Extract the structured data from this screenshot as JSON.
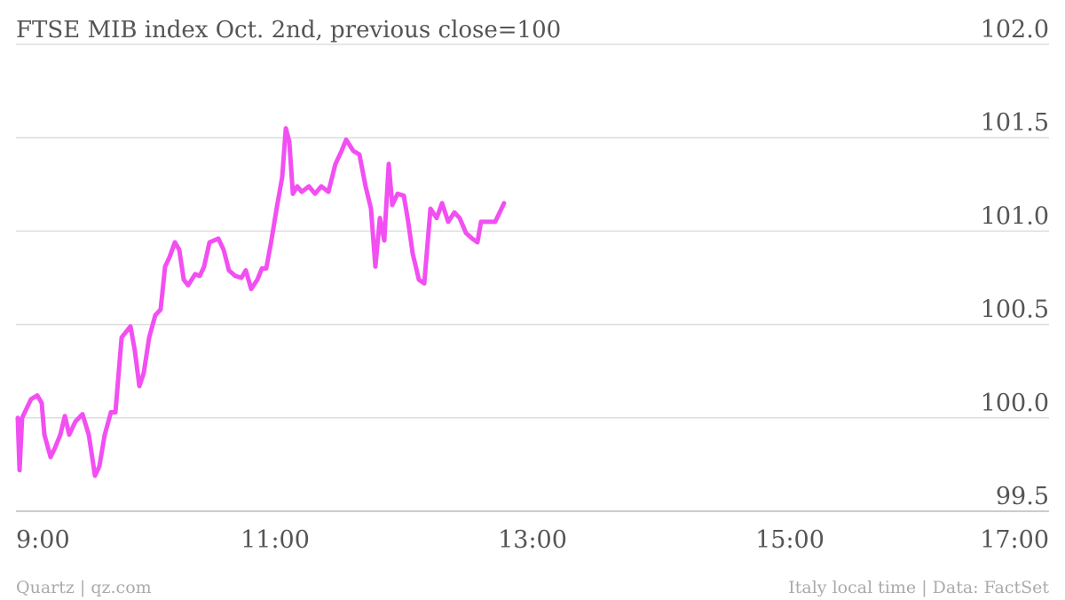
{
  "chart_data": {
    "type": "line",
    "title": "FTSE MIB index Oct. 2nd, previous close=100",
    "credit": "Quartz | qz.com",
    "source": "Italy local time | Data: FactSet",
    "xlim": [
      9,
      17
    ],
    "xticks": [
      {
        "value": 9,
        "label": "9:00"
      },
      {
        "value": 11,
        "label": "11:00"
      },
      {
        "value": 13,
        "label": "13:00"
      },
      {
        "value": 15,
        "label": "15:00"
      },
      {
        "value": 17,
        "label": "17:00"
      }
    ],
    "ylim": [
      99.5,
      102
    ],
    "yticks": [
      99.5,
      {
        "value": 100,
        "label": "100.0"
      },
      100.5,
      {
        "value": 101,
        "label": "101.0"
      },
      101.5,
      {
        "value": 102,
        "label": "102.0"
      }
    ],
    "grid": true,
    "x": [
      9.0,
      9.014,
      9.034,
      9.103,
      9.152,
      9.186,
      9.207,
      9.255,
      9.29,
      9.331,
      9.366,
      9.4,
      9.448,
      9.503,
      9.552,
      9.6,
      9.634,
      9.676,
      9.724,
      9.759,
      9.807,
      9.841,
      9.876,
      9.91,
      9.945,
      9.979,
      10.021,
      10.069,
      10.11,
      10.145,
      10.179,
      10.221,
      10.255,
      10.29,
      10.324,
      10.379,
      10.414,
      10.448,
      10.49,
      10.559,
      10.6,
      10.641,
      10.69,
      10.738,
      10.772,
      10.814,
      10.862,
      10.897,
      10.931,
      10.966,
      11.014,
      11.055,
      11.083,
      11.11,
      11.138,
      11.172,
      11.207,
      11.262,
      11.31,
      11.359,
      11.414,
      11.469,
      11.517,
      11.552,
      11.607,
      11.655,
      11.703,
      11.745,
      11.779,
      11.814,
      11.848,
      11.883,
      11.91,
      11.952,
      12.0,
      12.034,
      12.069,
      12.117,
      12.159,
      12.207,
      12.255,
      12.297,
      12.345,
      12.393,
      12.434,
      12.483,
      12.531,
      12.572,
      12.6,
      12.655,
      12.71,
      12.745,
      12.779
    ],
    "series": [
      {
        "name": "FTSE MIB",
        "color": "#f24ff2",
        "values": [
          100.0,
          99.72,
          100.0,
          100.1,
          100.12,
          100.08,
          99.91,
          99.79,
          99.84,
          99.91,
          100.01,
          99.91,
          99.98,
          100.02,
          99.91,
          99.69,
          99.74,
          99.91,
          100.03,
          100.03,
          100.43,
          100.46,
          100.49,
          100.36,
          100.17,
          100.24,
          100.43,
          100.55,
          100.58,
          100.81,
          100.86,
          100.94,
          100.9,
          100.74,
          100.71,
          100.77,
          100.76,
          100.81,
          100.94,
          100.96,
          100.9,
          100.79,
          100.76,
          100.75,
          100.79,
          100.69,
          100.74,
          100.8,
          100.8,
          100.93,
          101.13,
          101.29,
          101.55,
          101.48,
          101.2,
          101.24,
          101.21,
          101.24,
          101.2,
          101.24,
          101.21,
          101.36,
          101.43,
          101.49,
          101.43,
          101.41,
          101.24,
          101.12,
          100.81,
          101.07,
          100.95,
          101.36,
          101.14,
          101.2,
          101.19,
          101.05,
          100.88,
          100.74,
          100.72,
          101.12,
          101.07,
          101.15,
          101.05,
          101.1,
          101.07,
          100.99,
          100.96,
          100.94,
          101.05,
          101.05,
          101.05,
          101.1,
          101.15
        ]
      }
    ]
  }
}
